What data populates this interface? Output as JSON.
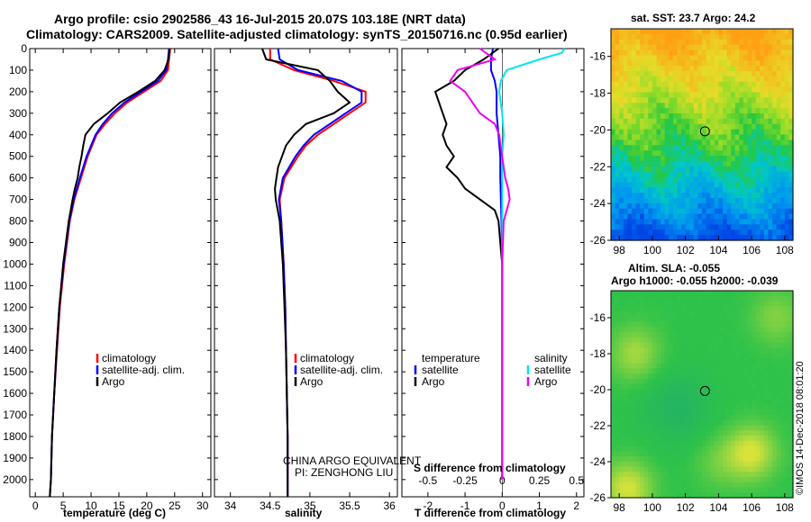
{
  "header": {
    "line1": "Argo profile: csio 2902586_43 16-Jul-2015 20.07S 103.18E (NRT data)",
    "line2": "Climatology: CARS2009. Satellite-adjusted climatology: synTS_20150716.nc (0.95d earlier)"
  },
  "watermark": "©IMOS 14-Dec-2018 08:01:20",
  "pi_note": {
    "line1": "CHINA ARGO EQUIVALENT",
    "line2": "PI: ZENGHONG LIU"
  },
  "colors": {
    "climatology": "#ff0000",
    "satellite": "#0000ff",
    "argo": "#000000",
    "sal_satellite": "#00e5ee",
    "sal_argo": "#ee00ee"
  },
  "chart_data": [
    {
      "type": "line",
      "title": "",
      "xlabel": "temperature (deg C)",
      "ylabel": "",
      "xlim": [
        -1,
        31.5
      ],
      "ylim": [
        2080,
        0
      ],
      "xticks": [
        0,
        5,
        10,
        15,
        20,
        25,
        30
      ],
      "yticks": [
        0,
        100,
        200,
        300,
        400,
        500,
        600,
        700,
        800,
        900,
        1000,
        1100,
        1200,
        1300,
        1400,
        1500,
        1600,
        1700,
        1800,
        1900,
        2000
      ],
      "legend": [
        "climatology",
        "satellite-adj. clim.",
        "Argo"
      ],
      "series": [
        {
          "name": "climatology",
          "color": "#ff0000",
          "depth": [
            0,
            50,
            100,
            150,
            200,
            250,
            300,
            350,
            400,
            500,
            600,
            700,
            800,
            1000,
            1200,
            1400,
            1600,
            1800,
            2000,
            2080
          ],
          "values": [
            24.2,
            24.0,
            23.8,
            22.5,
            19.5,
            16.5,
            14.3,
            12.5,
            11.0,
            9.4,
            8.2,
            7.0,
            6.2,
            5.2,
            4.4,
            3.9,
            3.4,
            3.0,
            2.8,
            2.6
          ]
        },
        {
          "name": "satellite-adj. clim.",
          "color": "#0000ff",
          "depth": [
            0,
            50,
            100,
            150,
            200,
            250,
            300,
            350,
            400,
            500,
            600,
            700,
            800,
            1000,
            1200,
            1400,
            1600,
            1800,
            2000,
            2080
          ],
          "values": [
            24.0,
            23.8,
            23.5,
            22.0,
            19.0,
            16.0,
            13.8,
            12.1,
            10.8,
            9.2,
            8.0,
            6.9,
            6.1,
            5.1,
            4.3,
            3.8,
            3.4,
            3.0,
            2.8,
            2.6
          ]
        },
        {
          "name": "Argo",
          "color": "#000000",
          "depth": [
            0,
            50,
            100,
            150,
            200,
            250,
            300,
            350,
            400,
            450,
            500,
            550,
            600,
            650,
            700,
            800,
            1000,
            1200,
            1400,
            1600,
            1800,
            2000,
            2080
          ],
          "values": [
            24.1,
            23.9,
            23.2,
            21.5,
            18.5,
            15.2,
            13.0,
            10.5,
            9.0,
            8.6,
            8.3,
            7.9,
            7.6,
            7.1,
            6.7,
            6.0,
            5.0,
            4.3,
            3.8,
            3.4,
            3.0,
            2.8,
            2.6
          ]
        }
      ]
    },
    {
      "type": "line",
      "title": "",
      "xlabel": "salinity",
      "ylabel": "",
      "xlim": [
        33.8,
        36.1
      ],
      "ylim": [
        2080,
        0
      ],
      "xticks": [
        34,
        34.5,
        35,
        35.5,
        36
      ],
      "legend": [
        "climatology",
        "satellite-adj. clim.",
        "Argo"
      ],
      "series": [
        {
          "name": "climatology",
          "color": "#ff0000",
          "depth": [
            0,
            50,
            100,
            150,
            200,
            250,
            300,
            350,
            400,
            450,
            500,
            600,
            700,
            800,
            1000,
            1200,
            1400,
            1600,
            1800,
            2000,
            2080
          ],
          "values": [
            34.5,
            34.5,
            34.8,
            35.3,
            35.7,
            35.7,
            35.5,
            35.3,
            35.1,
            34.95,
            34.85,
            34.68,
            34.62,
            34.64,
            34.67,
            34.69,
            34.7,
            34.71,
            34.72,
            34.72,
            34.72
          ]
        },
        {
          "name": "satellite-adj. clim.",
          "color": "#0000ff",
          "depth": [
            0,
            50,
            100,
            150,
            200,
            250,
            300,
            350,
            400,
            450,
            500,
            600,
            700,
            800,
            1000,
            1200,
            1400,
            1600,
            1800,
            2000,
            2080
          ],
          "values": [
            34.6,
            34.62,
            34.85,
            35.4,
            35.65,
            35.65,
            35.45,
            35.25,
            35.05,
            34.92,
            34.82,
            34.66,
            34.61,
            34.64,
            34.67,
            34.69,
            34.7,
            34.71,
            34.72,
            34.72,
            34.72
          ]
        },
        {
          "name": "Argo",
          "color": "#000000",
          "depth": [
            0,
            50,
            100,
            150,
            200,
            250,
            300,
            350,
            400,
            450,
            500,
            550,
            600,
            650,
            700,
            800,
            1000,
            1200,
            1400,
            1600,
            1800,
            2000,
            2080
          ],
          "values": [
            34.4,
            34.45,
            35.1,
            35.25,
            35.35,
            35.5,
            35.3,
            34.95,
            34.8,
            34.7,
            34.65,
            34.6,
            34.58,
            34.56,
            34.57,
            34.62,
            34.66,
            34.68,
            34.7,
            34.71,
            34.72,
            34.72,
            34.72
          ]
        }
      ]
    },
    {
      "type": "line",
      "title": "",
      "xlabel": "T difference from climatology",
      "secondary_xlabel": "S difference from climatology",
      "xlim": [
        -2.7,
        2.2
      ],
      "ylim": [
        2080,
        0
      ],
      "xticks": [
        -2,
        -1,
        0,
        1,
        2
      ],
      "secondary_xticks": [
        -0.5,
        -0.25,
        0,
        0.25,
        0.5
      ],
      "secondary_xlim": [
        -0.675,
        0.55
      ],
      "legend_temperature": [
        "temperature",
        "satellite",
        "Argo"
      ],
      "legend_salinity": [
        "salinity",
        "satellite",
        "Argo"
      ],
      "series": [
        {
          "name": "temperature satellite",
          "color": "#0000ff",
          "axis": "T",
          "depth": [
            0,
            50,
            100,
            150,
            200,
            300,
            400,
            500,
            600,
            800,
            1000,
            1400,
            1800,
            2000
          ],
          "values": [
            -0.25,
            -0.3,
            -0.3,
            -0.2,
            -0.15,
            -0.15,
            -0.1,
            -0.05,
            -0.05,
            -0.02,
            0.0,
            0.0,
            0.0,
            0.0
          ]
        },
        {
          "name": "temperature Argo",
          "color": "#000000",
          "axis": "T",
          "depth": [
            0,
            50,
            100,
            150,
            200,
            250,
            300,
            350,
            400,
            450,
            500,
            550,
            600,
            650,
            700,
            750,
            800,
            900,
            1000,
            1400,
            1800,
            2000
          ],
          "values": [
            -0.1,
            -0.5,
            -1.0,
            -1.3,
            -1.8,
            -1.7,
            -1.6,
            -1.5,
            -1.6,
            -1.5,
            -1.3,
            -1.5,
            -1.2,
            -1.0,
            -0.6,
            -0.2,
            -0.1,
            -0.05,
            0.0,
            0.0,
            0.0,
            0.0
          ]
        },
        {
          "name": "salinity satellite",
          "color": "#00e5ee",
          "axis": "S",
          "depth": [
            0,
            20,
            50,
            100,
            150,
            200,
            300,
            400,
            500,
            600,
            800,
            1000,
            1400,
            1800,
            2000
          ],
          "values": [
            0.42,
            0.4,
            0.25,
            0.03,
            -0.01,
            -0.02,
            0.0,
            0.01,
            0.0,
            0.0,
            0.0,
            0.0,
            0.0,
            0.0,
            0.0
          ]
        },
        {
          "name": "salinity Argo",
          "color": "#ee00ee",
          "axis": "S",
          "depth": [
            0,
            50,
            100,
            150,
            200,
            250,
            300,
            350,
            400,
            500,
            600,
            650,
            700,
            750,
            800,
            1000,
            1400,
            1800,
            2000
          ],
          "values": [
            -0.15,
            -0.05,
            -0.3,
            -0.35,
            -0.25,
            -0.2,
            -0.15,
            -0.05,
            -0.02,
            0.0,
            0.02,
            0.04,
            0.05,
            0.03,
            0.01,
            0.0,
            0.0,
            0.0,
            0.0
          ]
        }
      ]
    },
    {
      "type": "heatmap",
      "title": "sat. SST: 23.7 Argo: 24.2",
      "xticks": [
        98,
        100,
        102,
        104,
        106,
        108
      ],
      "yticks": [
        -16,
        -18,
        -20,
        -22,
        -24,
        -26
      ],
      "xlim": [
        97.5,
        108.5
      ],
      "ylim": [
        -26,
        -14.5
      ],
      "marker": {
        "lon": 103.18,
        "lat": -20.07
      },
      "field_description_rows": [
        {
          "lat": -14.5,
          "value": 25.5
        },
        {
          "lat": -17.0,
          "value": 24.8
        },
        {
          "lat": -19.0,
          "value": 24.2
        },
        {
          "lat": -21.0,
          "value": 23.7
        },
        {
          "lat": -23.0,
          "value": 23.1
        },
        {
          "lat": -25.0,
          "value": 22.4
        },
        {
          "lat": -26.0,
          "value": 22.0
        }
      ]
    },
    {
      "type": "heatmap",
      "title": "Altim. SLA: -0.055",
      "subtitle": "Argo h1000: -0.055 h2000: -0.039",
      "xticks": [
        98,
        100,
        102,
        104,
        106,
        108
      ],
      "yticks": [
        -16,
        -18,
        -20,
        -22,
        -24,
        -26
      ],
      "xlim": [
        97.5,
        108.5
      ],
      "ylim": [
        -26,
        -14.5
      ],
      "marker": {
        "lon": 103.18,
        "lat": -20.07
      },
      "colors": {
        "background": "#2ec24a",
        "high": "#d8e23a",
        "low": "#1aa878"
      }
    }
  ]
}
